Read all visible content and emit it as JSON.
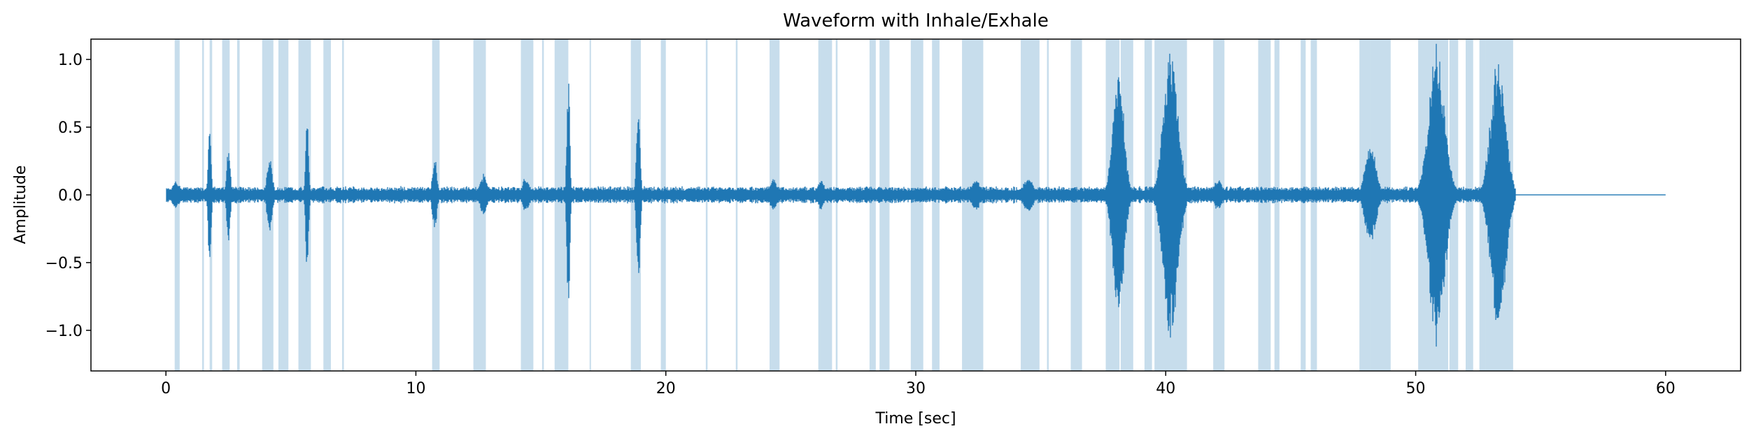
{
  "chart_data": {
    "type": "line",
    "title": "Waveform with Inhale/Exhale",
    "xlabel": "Time [sec]",
    "ylabel": "Amplitude",
    "xlim": [
      -3,
      63
    ],
    "ylim": [
      -1.3,
      1.15
    ],
    "xticks": [
      0,
      10,
      20,
      30,
      40,
      50,
      60
    ],
    "yticks": [
      -1.0,
      -0.5,
      0.0,
      0.5,
      1.0
    ],
    "ytick_labels": [
      "−1.0",
      "−0.5",
      "0.0",
      "0.5",
      "1.0"
    ],
    "grid": false,
    "line_color": "#1f77b4",
    "span_color": "#1f77b4",
    "span_alpha": 0.25,
    "signal_duration": 60,
    "signal_end": 54.0,
    "spans": [
      [
        0.35,
        0.55
      ],
      [
        1.45,
        1.52
      ],
      [
        1.75,
        1.85
      ],
      [
        2.25,
        2.55
      ],
      [
        2.85,
        2.95
      ],
      [
        3.85,
        4.3
      ],
      [
        4.5,
        4.9
      ],
      [
        5.3,
        5.8
      ],
      [
        6.3,
        6.6
      ],
      [
        7.05,
        7.12
      ],
      [
        10.65,
        10.95
      ],
      [
        12.3,
        12.8
      ],
      [
        14.2,
        14.7
      ],
      [
        15.05,
        15.12
      ],
      [
        15.55,
        16.1
      ],
      [
        16.95,
        17.0
      ],
      [
        18.6,
        19.0
      ],
      [
        19.8,
        20.0
      ],
      [
        21.6,
        21.67
      ],
      [
        22.8,
        22.87
      ],
      [
        24.15,
        24.55
      ],
      [
        26.1,
        26.65
      ],
      [
        26.8,
        26.87
      ],
      [
        28.15,
        28.4
      ],
      [
        28.55,
        28.95
      ],
      [
        29.8,
        30.3
      ],
      [
        30.65,
        30.95
      ],
      [
        31.85,
        32.7
      ],
      [
        34.2,
        34.95
      ],
      [
        35.25,
        35.32
      ],
      [
        36.2,
        36.65
      ],
      [
        37.6,
        38.15
      ],
      [
        38.2,
        38.7
      ],
      [
        39.15,
        39.45
      ],
      [
        39.55,
        40.85
      ],
      [
        41.9,
        42.35
      ],
      [
        43.7,
        44.2
      ],
      [
        44.35,
        44.55
      ],
      [
        45.4,
        45.6
      ],
      [
        45.8,
        46.05
      ],
      [
        47.75,
        48.2
      ],
      [
        48.2,
        49.0
      ],
      [
        50.1,
        51.3
      ],
      [
        51.35,
        51.7
      ],
      [
        52.0,
        52.3
      ],
      [
        52.55,
        52.8
      ],
      [
        52.8,
        53.9
      ]
    ],
    "bursts": [
      {
        "center": 0.4,
        "width": 0.25,
        "amp": 0.1
      },
      {
        "center": 1.75,
        "width": 0.08,
        "amp": 0.6
      },
      {
        "center": 2.5,
        "width": 0.1,
        "amp": 0.36
      },
      {
        "center": 4.15,
        "width": 0.15,
        "amp": 0.28
      },
      {
        "center": 5.65,
        "width": 0.08,
        "amp": 0.65
      },
      {
        "center": 10.75,
        "width": 0.12,
        "amp": 0.3
      },
      {
        "center": 12.7,
        "width": 0.2,
        "amp": 0.16
      },
      {
        "center": 14.4,
        "width": 0.2,
        "amp": 0.14
      },
      {
        "center": 16.1,
        "width": 0.08,
        "amp": 0.95
      },
      {
        "center": 18.9,
        "width": 0.1,
        "amp": 0.72
      },
      {
        "center": 24.3,
        "width": 0.2,
        "amp": 0.12
      },
      {
        "center": 26.2,
        "width": 0.2,
        "amp": 0.12
      },
      {
        "center": 32.4,
        "width": 0.25,
        "amp": 0.13
      },
      {
        "center": 34.5,
        "width": 0.3,
        "amp": 0.13
      },
      {
        "center": 38.1,
        "width": 0.3,
        "amp": 1.02
      },
      {
        "center": 40.2,
        "width": 0.4,
        "amp": 1.17
      },
      {
        "center": 42.1,
        "width": 0.2,
        "amp": 0.13
      },
      {
        "center": 48.2,
        "width": 0.3,
        "amp": 0.4
      },
      {
        "center": 50.85,
        "width": 0.45,
        "amp": 1.15
      },
      {
        "center": 53.3,
        "width": 0.4,
        "amp": 1.13
      }
    ]
  }
}
